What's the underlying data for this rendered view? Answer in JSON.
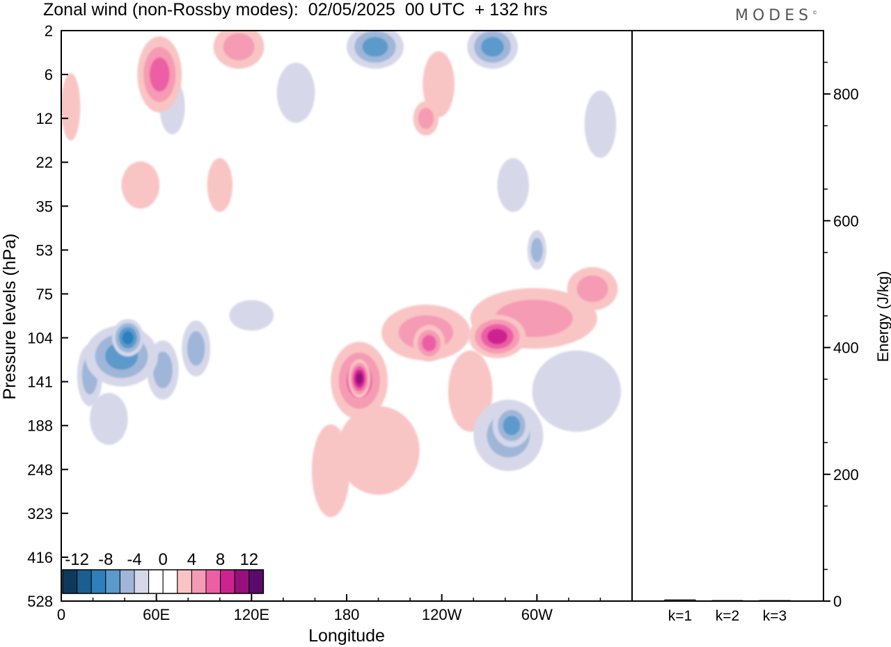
{
  "page": {
    "title": "Zonal wind (non-Rossby modes):  02/05/2025  00 UTC  + 132 hrs",
    "logo": "MODES",
    "logo_mark": "©"
  },
  "chart_data": [
    {
      "type": "heatmap",
      "title": "Zonal wind (non-Rossby modes):  02/05/2025  00 UTC  + 132 hrs",
      "xlabel": "Longitude",
      "ylabel": "Pressure levels (hPa)",
      "x_ticks": [
        "0",
        "60E",
        "120E",
        "180",
        "120W",
        "60W"
      ],
      "x_tick_values": [
        0,
        60,
        120,
        180,
        240,
        300
      ],
      "x_range": [
        0,
        360
      ],
      "y_ticks": [
        "2",
        "6",
        "12",
        "22",
        "35",
        "53",
        "75",
        "104",
        "141",
        "188",
        "248",
        "323",
        "416",
        "528"
      ],
      "colorbar": {
        "labels": [
          "-12",
          "-8",
          "-4",
          "0",
          "4",
          "8",
          "12"
        ],
        "colors": [
          "#0d3a5c",
          "#1a5f90",
          "#2d7fbd",
          "#5b9acb",
          "#9fb6d8",
          "#d6d8ea",
          "#ffffff",
          "#ffffff",
          "#f9c5c4",
          "#f59bb4",
          "#ec5fa4",
          "#cc2391",
          "#97107c",
          "#5a0a6c"
        ]
      },
      "blobs": [
        {
          "lon": 38,
          "p": 118,
          "rx": 23,
          "ry": 25,
          "v": -7
        },
        {
          "lon": 42,
          "p": 104,
          "rx": 10,
          "ry": 14,
          "v": -9
        },
        {
          "lon": 18,
          "p": 135,
          "rx": 8,
          "ry": 28,
          "v": -4
        },
        {
          "lon": 64,
          "p": 130,
          "rx": 10,
          "ry": 26,
          "v": -5
        },
        {
          "lon": 30,
          "p": 180,
          "rx": 12,
          "ry": 30,
          "v": -3
        },
        {
          "lon": 85,
          "p": 112,
          "rx": 9,
          "ry": 22,
          "v": -4
        },
        {
          "lon": 120,
          "p": 88,
          "rx": 14,
          "ry": 10,
          "v": -3
        },
        {
          "lon": 188,
          "p": 140,
          "rx": 18,
          "ry": 36,
          "v": 6
        },
        {
          "lon": 188,
          "p": 138,
          "rx": 7,
          "ry": 18,
          "v": 10
        },
        {
          "lon": 200,
          "p": 220,
          "rx": 26,
          "ry": 60,
          "v": 3
        },
        {
          "lon": 170,
          "p": 250,
          "rx": 12,
          "ry": 70,
          "v": 2
        },
        {
          "lon": 232,
          "p": 108,
          "rx": 10,
          "ry": 14,
          "v": 7
        },
        {
          "lon": 230,
          "p": 100,
          "rx": 28,
          "ry": 20,
          "v": 4
        },
        {
          "lon": 275,
          "p": 103,
          "rx": 18,
          "ry": 16,
          "v": 8
        },
        {
          "lon": 298,
          "p": 90,
          "rx": 40,
          "ry": 20,
          "v": 4
        },
        {
          "lon": 335,
          "p": 72,
          "rx": 16,
          "ry": 12,
          "v": 5
        },
        {
          "lon": 258,
          "p": 150,
          "rx": 14,
          "ry": 40,
          "v": 3
        },
        {
          "lon": 284,
          "p": 188,
          "rx": 12,
          "ry": 26,
          "v": -7
        },
        {
          "lon": 282,
          "p": 200,
          "rx": 22,
          "ry": 45,
          "v": -4
        },
        {
          "lon": 325,
          "p": 150,
          "rx": 28,
          "ry": 40,
          "v": -3
        },
        {
          "lon": 62,
          "p": 6,
          "rx": 14,
          "ry": 4,
          "v": 6
        },
        {
          "lon": 112,
          "p": 3,
          "rx": 16,
          "ry": 3,
          "v": 5
        },
        {
          "lon": 198,
          "p": 3,
          "rx": 18,
          "ry": 3,
          "v": -7
        },
        {
          "lon": 272,
          "p": 3,
          "rx": 16,
          "ry": 3,
          "v": -6
        },
        {
          "lon": 238,
          "p": 7,
          "rx": 10,
          "ry": 4,
          "v": 3
        },
        {
          "lon": 230,
          "p": 12,
          "rx": 8,
          "ry": 3,
          "v": 4
        },
        {
          "lon": 50,
          "p": 28,
          "rx": 12,
          "ry": 7,
          "v": 3
        },
        {
          "lon": 100,
          "p": 28,
          "rx": 8,
          "ry": 8,
          "v": 3
        },
        {
          "lon": 340,
          "p": 13,
          "rx": 10,
          "ry": 6,
          "v": -3
        },
        {
          "lon": 285,
          "p": 28,
          "rx": 10,
          "ry": 8,
          "v": -3
        },
        {
          "lon": 300,
          "p": 53,
          "rx": 6,
          "ry": 9,
          "v": -4
        },
        {
          "lon": 6,
          "p": 10,
          "rx": 6,
          "ry": 5,
          "v": 3
        },
        {
          "lon": 148,
          "p": 8,
          "rx": 12,
          "ry": 4,
          "v": -3
        },
        {
          "lon": 70,
          "p": 10,
          "rx": 8,
          "ry": 4,
          "v": -3
        }
      ]
    },
    {
      "type": "bar",
      "ylabel": "Energy (J/kg)",
      "categories": [
        "k=1",
        "k=2",
        "k=3"
      ],
      "values": [
        2,
        1,
        1
      ],
      "ylim": [
        0,
        900
      ],
      "y_ticks": [
        0,
        200,
        400,
        600,
        800
      ]
    }
  ]
}
